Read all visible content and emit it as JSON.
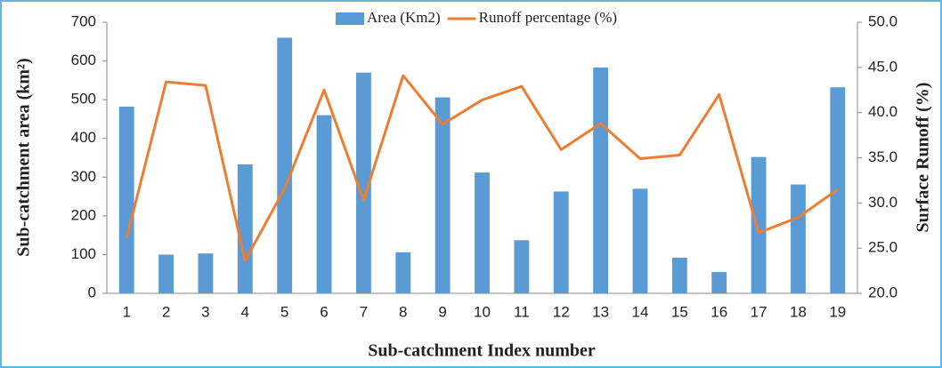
{
  "chart_data": {
    "type": "bar_line",
    "legend": "top",
    "xlabel": "Sub-catchment Index number",
    "ylabel": "Sub-catchment area (km²)",
    "y2label": "Surface Runoff (%)",
    "categories": [
      "1",
      "2",
      "3",
      "4",
      "5",
      "6",
      "7",
      "8",
      "9",
      "10",
      "11",
      "12",
      "13",
      "14",
      "15",
      "16",
      "17",
      "18",
      "19"
    ],
    "series": [
      {
        "name": "Area (Km2)",
        "type": "bar",
        "color": "#5b9bd5",
        "values": [
          482,
          100,
          103,
          333,
          660,
          460,
          570,
          106,
          506,
          312,
          137,
          263,
          583,
          270,
          92,
          55,
          352,
          281,
          532
        ]
      },
      {
        "name": "Runoff percentage (%)",
        "type": "line",
        "axis": "y2",
        "color": "#ed7d31",
        "values": [
          26.1,
          43.4,
          43.0,
          23.6,
          31.6,
          42.5,
          30.3,
          44.1,
          38.7,
          41.4,
          42.9,
          35.9,
          38.8,
          34.9,
          35.3,
          42.0,
          26.7,
          28.4,
          31.5
        ]
      }
    ],
    "ylim": [
      0,
      700
    ],
    "yticks": [
      0,
      100,
      200,
      300,
      400,
      500,
      600,
      700
    ],
    "y2lim": [
      20,
      50
    ],
    "y2ticks": [
      {
        "value": 20,
        "label": "20.0"
      },
      {
        "value": 25,
        "label": "25.0"
      },
      {
        "value": 30,
        "label": "30.0"
      },
      {
        "value": 35,
        "label": "35.0"
      },
      {
        "value": 40,
        "label": "40.0"
      },
      {
        "value": 45,
        "label": "45.0"
      },
      {
        "value": 50,
        "label": "50.0"
      }
    ]
  }
}
